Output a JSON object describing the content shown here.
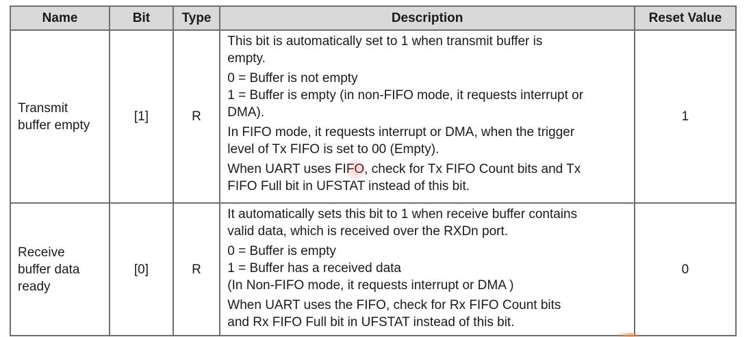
{
  "table": {
    "headers": {
      "name": "Name",
      "bit": "Bit",
      "type": "Type",
      "description": "Description",
      "reset": "Reset Value"
    },
    "rows": [
      {
        "name_lines": [
          "Transmit",
          "buffer empty"
        ],
        "bit": "[1]",
        "type": "R",
        "reset": "1",
        "description": [
          [
            "This bit is automatically set to 1 when transmit buffer is",
            "empty."
          ],
          [
            "0 = Buffer is not empty",
            "1 = Buffer is empty (in non-FIFO mode, it requests interrupt or",
            "DMA)."
          ],
          [
            "In FIFO mode, it requests interrupt or DMA, when the trigger",
            "level of Tx FIFO is set to 00 (Empty)."
          ],
          [
            "When UART uses FIFO, check for Tx FIFO Count bits and Tx",
            "FIFO Full bit in UFSTAT instead of this bit."
          ]
        ]
      },
      {
        "name_lines": [
          "Receive",
          "buffer data",
          "ready"
        ],
        "bit": "[0]",
        "type": "R",
        "reset": "0",
        "description": [
          [
            "It automatically sets this bit to 1 when receive buffer contains",
            "valid data, which is received over the RXDn port."
          ],
          [
            "0 = Buffer is empty",
            "1 = Buffer has a received data",
            "(In Non-FIFO mode, it requests interrupt or DMA )"
          ],
          [
            "When UART uses the FIFO, check for Rx FIFO Count bits",
            "and Rx FIFO Full bit in UFSTAT instead of this bit."
          ]
        ]
      }
    ]
  }
}
